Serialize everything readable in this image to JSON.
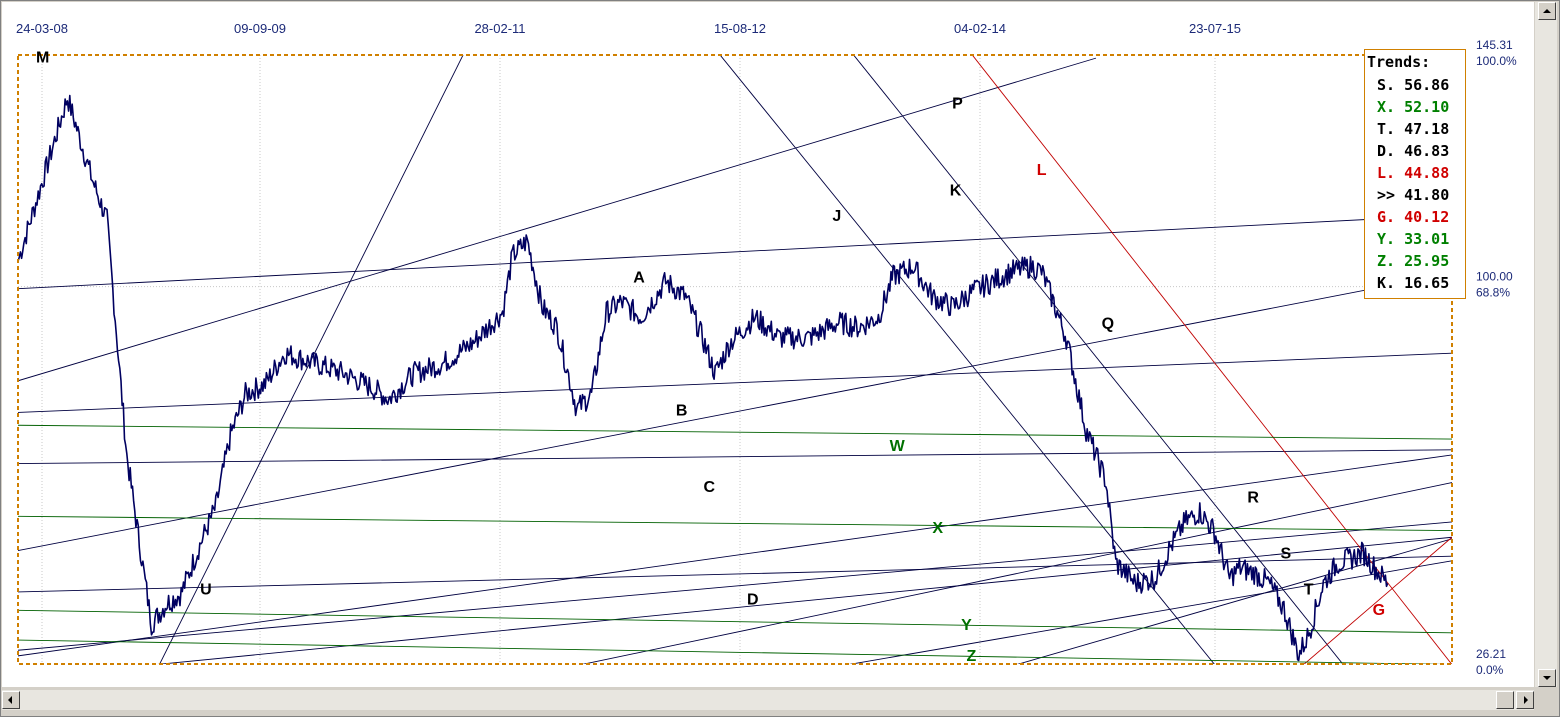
{
  "chart_data": {
    "type": "line",
    "x_tick_labels": [
      "24-03-08",
      "09-09-09",
      "28-02-11",
      "15-08-12",
      "04-02-14",
      "23-07-15"
    ],
    "y_tick_labels": [
      {
        "value": "145.31",
        "percent": "100.0%"
      },
      {
        "value": "100.00",
        "percent": "68.8%"
      },
      {
        "value": "26.21",
        "percent": "0.0%"
      }
    ],
    "ylim": [
      26.21,
      145.31
    ],
    "grid": true,
    "series": [
      {
        "color": "#000060",
        "x": [
          0,
          30,
          50,
          75,
          90,
          110,
          125,
          135,
          150,
          165,
          185,
          200,
          215,
          230,
          250,
          270,
          300,
          330,
          360,
          375,
          400,
          430,
          460,
          490,
          500,
          515,
          530,
          545,
          565,
          580,
          595,
          610,
          630,
          655,
          675,
          690,
          705,
          720,
          745,
          770,
          800,
          830,
          850,
          870,
          885,
          905,
          925,
          945,
          965,
          985,
          1005,
          1025,
          1035,
          1045,
          1060,
          1080,
          1100,
          1110,
          1130,
          1150,
          1165,
          1180,
          1195,
          1210,
          1225,
          1235,
          1250,
          1265,
          1280,
          1295,
          1305,
          1320,
          1335,
          1350,
          1360,
          1372,
          1385
        ],
        "y": [
          105,
          124,
          137,
          121,
          113,
          67,
          47,
          34,
          38,
          40,
          50,
          57,
          71,
          79,
          81,
          87,
          85,
          83,
          80,
          78,
          83,
          85,
          89,
          95,
          106,
          109,
          96,
          92,
          76,
          79,
          95,
          97,
          94,
          101,
          98,
          91,
          83,
          89,
          94,
          90,
          90,
          93,
          92,
          94,
          102,
          104,
          98,
          96,
          99,
          101,
          103,
          104,
          103,
          98,
          90,
          72,
          62,
          46,
          42,
          43,
          49,
          54,
          56,
          52,
          43,
          45,
          44,
          42,
          37,
          28,
          32,
          42,
          46,
          47,
          48,
          45,
          42
        ]
      }
    ],
    "trend_lines": [
      {
        "color": "#000040",
        "points": [
          [
            0,
            99.6
          ],
          [
            1450,
            114
          ]
        ]
      },
      {
        "color": "#000040",
        "points": [
          [
            0,
            81.6
          ],
          [
            1090,
            144.7
          ]
        ]
      },
      {
        "color": "#000040",
        "points": [
          [
            0,
            48.4
          ],
          [
            1450,
            102.6
          ]
        ]
      },
      {
        "color": "#000040",
        "points": [
          [
            0,
            75.4
          ],
          [
            1450,
            87
          ]
        ]
      },
      {
        "color": "#000040",
        "points": [
          [
            0,
            65.4
          ],
          [
            1450,
            68.1
          ]
        ]
      },
      {
        "color": "#000040",
        "points": [
          [
            0,
            28.9
          ],
          [
            1450,
            54
          ]
        ]
      },
      {
        "color": "#000040",
        "points": [
          [
            140,
            26.1
          ],
          [
            1450,
            51
          ]
        ]
      },
      {
        "color": "#000040",
        "points": [
          [
            0,
            40.3
          ],
          [
            1450,
            47.3
          ]
        ]
      },
      {
        "color": "#000040",
        "points": [
          [
            0,
            27.8
          ],
          [
            1450,
            67.1
          ]
        ]
      },
      {
        "color": "#000040",
        "points": [
          [
            570,
            26.1
          ],
          [
            1450,
            61.7
          ]
        ]
      },
      {
        "color": "#000040",
        "points": [
          [
            840,
            26.1
          ],
          [
            1450,
            46.4
          ]
        ]
      },
      {
        "color": "#000040",
        "points": [
          [
            1010,
            26.1
          ],
          [
            1450,
            50.7
          ]
        ]
      },
      {
        "color": "#000040",
        "points": [
          [
            20,
            145.3
          ],
          [
            65,
            147.8
          ]
        ]
      },
      {
        "color": "#000040",
        "points": [
          [
            143,
            26.1
          ],
          [
            450,
            145.3
          ]
        ]
      },
      {
        "color": "#000040",
        "points": [
          [
            710,
            145.3
          ],
          [
            1210,
            26.1
          ]
        ]
      },
      {
        "color": "#000040",
        "points": [
          [
            845,
            145.3
          ],
          [
            1340,
            26.1
          ]
        ]
      },
      {
        "color": "#c00000",
        "points": [
          [
            965,
            145.3
          ],
          [
            1450,
            26.1
          ]
        ]
      },
      {
        "color": "#c00000",
        "points": [
          [
            1300,
            26.1
          ],
          [
            1450,
            51
          ]
        ]
      },
      {
        "color": "#006000",
        "points": [
          [
            0,
            72.9
          ],
          [
            1450,
            70.2
          ]
        ]
      },
      {
        "color": "#006000",
        "points": [
          [
            0,
            55.1
          ],
          [
            1450,
            52.3
          ]
        ]
      },
      {
        "color": "#006000",
        "points": [
          [
            0,
            36.7
          ],
          [
            1450,
            32.3
          ]
        ]
      },
      {
        "color": "#006000",
        "points": [
          [
            0,
            30.9
          ],
          [
            1450,
            26.1
          ]
        ]
      }
    ],
    "annotations": [
      {
        "text": "M",
        "color": "#000000",
        "x": 25,
        "y": 145
      },
      {
        "text": "P",
        "color": "#000000",
        "x": 950,
        "y": 136
      },
      {
        "text": "L",
        "color": "#d00000",
        "x": 1035,
        "y": 123
      },
      {
        "text": "K",
        "color": "#000000",
        "x": 948,
        "y": 119
      },
      {
        "text": "J",
        "color": "#000000",
        "x": 828,
        "y": 114
      },
      {
        "text": "A",
        "color": "#000000",
        "x": 628,
        "y": 102
      },
      {
        "text": "Q",
        "color": "#000000",
        "x": 1102,
        "y": 93
      },
      {
        "text": "B",
        "color": "#000000",
        "x": 671,
        "y": 76
      },
      {
        "text": "W",
        "color": "#007000",
        "x": 889,
        "y": 69
      },
      {
        "text": "C",
        "color": "#000000",
        "x": 699,
        "y": 61
      },
      {
        "text": "R",
        "color": "#000000",
        "x": 1249,
        "y": 59
      },
      {
        "text": "X",
        "color": "#007000",
        "x": 930,
        "y": 53
      },
      {
        "text": "S",
        "color": "#000000",
        "x": 1282,
        "y": 48
      },
      {
        "text": "U",
        "color": "#000000",
        "x": 190,
        "y": 41
      },
      {
        "text": "T",
        "color": "#000000",
        "x": 1305,
        "y": 41
      },
      {
        "text": "D",
        "color": "#000000",
        "x": 743,
        "y": 39
      },
      {
        "text": "G",
        "color": "#d00000",
        "x": 1376,
        "y": 37
      },
      {
        "text": "Y",
        "color": "#007000",
        "x": 959,
        "y": 34
      },
      {
        "text": "Z",
        "color": "#007000",
        "x": 964,
        "y": 28
      }
    ]
  },
  "legend": {
    "title": "Trends:",
    "position": "top-right",
    "items": [
      {
        "label": "S.",
        "value": "56.86",
        "color": "#000000"
      },
      {
        "label": "X.",
        "value": "52.10",
        "color": "#008000"
      },
      {
        "label": "T.",
        "value": "47.18",
        "color": "#000000"
      },
      {
        "label": "D.",
        "value": "46.83",
        "color": "#000000"
      },
      {
        "label": "L.",
        "value": "44.88",
        "color": "#d00000"
      },
      {
        "label": ">>",
        "value": "41.80",
        "color": "#000000"
      },
      {
        "label": "G.",
        "value": "40.12",
        "color": "#d00000"
      },
      {
        "label": "Y.",
        "value": "33.01",
        "color": "#008000"
      },
      {
        "label": "Z.",
        "value": "25.95",
        "color": "#008000"
      },
      {
        "label": "K.",
        "value": "16.65",
        "color": "#000000"
      }
    ]
  },
  "colors": {
    "price": "#000060",
    "frame": "#d08000",
    "grid": "#c8c8c8",
    "tick_text": "#1c2a78"
  },
  "scrollbars": {
    "vertical": {
      "up_icon": "arrow-up-icon",
      "down_icon": "arrow-down-icon"
    },
    "horizontal": {
      "left_icon": "arrow-left-icon",
      "right_icon": "arrow-right-icon"
    }
  }
}
